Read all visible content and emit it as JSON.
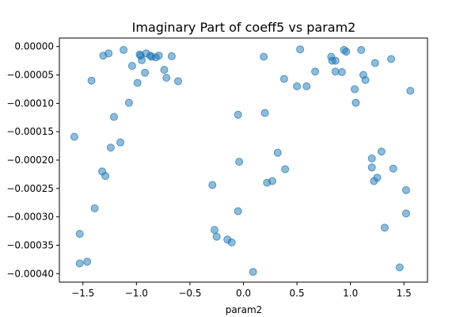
{
  "chart_data": {
    "type": "scatter",
    "title": "Imaginary Part of coeff5 vs param2",
    "xlabel": "param2",
    "ylabel": "",
    "xlim": [
      -1.72,
      1.72
    ],
    "ylim": [
      -0.000415,
      1.5e-05
    ],
    "xticks": [
      -1.5,
      -1.0,
      -0.5,
      0.0,
      0.5,
      1.0,
      1.5
    ],
    "xtick_labels": [
      "−1.5",
      "−1.0",
      "−0.5",
      "0.0",
      "0.5",
      "1.0",
      "1.5"
    ],
    "yticks": [
      0.0,
      -5e-05,
      -0.0001,
      -0.00015,
      -0.0002,
      -0.00025,
      -0.0003,
      -0.00035,
      -0.0004
    ],
    "ytick_labels": [
      "0.00000",
      "−0.00005",
      "−0.00010",
      "−0.00015",
      "−0.00020",
      "−0.00025",
      "−0.00030",
      "−0.00035",
      "−0.00040"
    ],
    "grid": false,
    "marker_color": "#1f77b4",
    "marker_alpha": 0.5,
    "series": [
      {
        "x": [
          -1.58,
          -1.53,
          -1.53,
          -1.46,
          -1.42,
          -1.39,
          -1.32,
          -1.31,
          -1.29,
          -1.26,
          -1.24,
          -1.21,
          -1.15,
          -1.12,
          -1.07,
          -1.04,
          -0.99,
          -0.97,
          -0.96,
          -0.95,
          -0.92,
          -0.91,
          -0.87,
          -0.86,
          -0.82,
          -0.79,
          -0.74,
          -0.72,
          -0.67,
          -0.61,
          -0.29,
          -0.27,
          -0.25,
          -0.15,
          -0.11,
          -0.05,
          -0.05,
          -0.04,
          0.09,
          0.19,
          0.2,
          0.22,
          0.27,
          0.32,
          0.38,
          0.39,
          0.5,
          0.53,
          0.59,
          0.67,
          0.82,
          0.83,
          0.86,
          0.86,
          0.92,
          0.94,
          0.96,
          1.04,
          1.05,
          1.1,
          1.12,
          1.14,
          1.2,
          1.2,
          1.22,
          1.23,
          1.25,
          1.29,
          1.32,
          1.38,
          1.4,
          1.46,
          1.52,
          1.52,
          1.56
        ],
        "y": [
          -0.000159,
          -0.00033,
          -0.000382,
          -0.000379,
          -6e-05,
          -0.000285,
          -0.00022,
          -1.6e-05,
          -0.000228,
          -1.2e-05,
          -0.000178,
          -0.000124,
          -0.000169,
          -6e-06,
          -9.9e-05,
          -3.4e-05,
          -6.4e-05,
          -1.4e-05,
          -1.6e-05,
          -2.4e-05,
          -4.6e-05,
          -1.2e-05,
          -1.6e-05,
          -1.8e-05,
          -1.9e-05,
          -1.6e-05,
          -4.1e-05,
          -5.5e-05,
          -1.7e-05,
          -6.1e-05,
          -0.000244,
          -0.000323,
          -0.000335,
          -0.00034,
          -0.000345,
          -0.00029,
          -0.00012,
          -0.000203,
          -0.000397,
          -1.8e-05,
          -0.000117,
          -0.00024,
          -0.000237,
          -0.000187,
          -5.7e-05,
          -0.000216,
          -7e-05,
          -5e-06,
          -7e-05,
          -4.4e-05,
          -1.8e-05,
          -2.5e-05,
          -2.5e-05,
          -4.4e-05,
          -4.5e-05,
          -6e-06,
          -9e-06,
          -7.5e-05,
          -9.9e-05,
          -6e-06,
          -5e-05,
          -5.9e-05,
          -0.000197,
          -0.000213,
          -0.000237,
          -2.9e-05,
          -0.000231,
          -0.000185,
          -0.000319,
          -2.2e-05,
          -0.000215,
          -0.000389,
          -0.000253,
          -0.000294,
          -7.8e-05
        ]
      }
    ]
  }
}
